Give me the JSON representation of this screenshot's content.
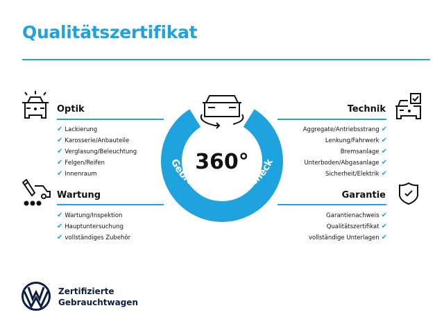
{
  "title": "Qualitätszertifikat",
  "center": {
    "value": "360°",
    "arc_text": "Gebrauchtwagen-Check",
    "ring_color": "#1fa3df"
  },
  "sections": {
    "optik": {
      "heading": "Optik",
      "icon": "car-lights-icon",
      "items": [
        "Lackierung",
        "Karosserie/Anbauteile",
        "Verglasung/Beleuchtung",
        "Felgen/Reifen",
        "Innenraum"
      ]
    },
    "wartung": {
      "heading": "Wartung",
      "icon": "service-tool-car-icon",
      "items": [
        "Wartung/Inspektion",
        "Hauptuntersuchung",
        "vollständiges Zubehör"
      ]
    },
    "technik": {
      "heading": "Technik",
      "icon": "car-checkbox-icon",
      "items": [
        "Aggregate/Antriebsstrang",
        "Lenkung/Fahrwerk",
        "Bremsanlage",
        "Unterboden/Abgasanlage",
        "Sicherheit/Elektrik"
      ]
    },
    "garantie": {
      "heading": "Garantie",
      "icon": "shield-check-icon",
      "items": [
        "Garantienachweis",
        "Qualitätszertifikat",
        "vollständige Unterlagen"
      ]
    }
  },
  "check_glyph": "✔",
  "brand": {
    "line1": "Zertifizierte",
    "line2": "Gebrauchtwagen",
    "logo": "vw-logo"
  },
  "accent": "#1fa3df"
}
